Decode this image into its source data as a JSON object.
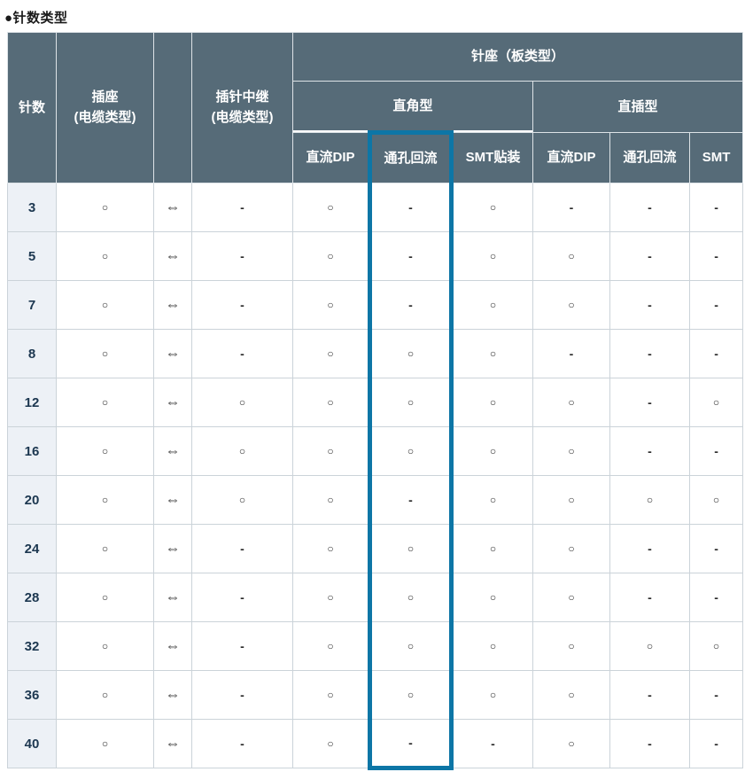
{
  "title": "●针数类型",
  "colors": {
    "header_bg": "#566b78",
    "header_text": "#ffffff",
    "row_label_bg": "#edf1f6",
    "row_label_text": "#1c3750",
    "grid_line": "#cbd3d9",
    "highlight_border": "#0d76a6"
  },
  "table": {
    "corner_header": "针数",
    "socket_header_line1": "插座",
    "socket_header_line2": "(电缆类型)",
    "arrow_col_header": "",
    "relay_header_line1": "插针中继",
    "relay_header_line2": "(电缆类型)",
    "board_type_group": "针座（板类型）",
    "right_angle_group": "直角型",
    "straight_group": "直插型",
    "sub_headers": [
      "直流DIP",
      "通孔回流",
      "SMT贴装",
      "直流DIP",
      "通孔回流",
      "SMT"
    ],
    "highlight": {
      "column_label": "通孔回流",
      "group": "直角型",
      "cell_index": 4
    },
    "symbols": {
      "available": "○",
      "not_available": "-",
      "interchangeable": "⇔"
    },
    "rows": [
      {
        "pins": "3",
        "cells": [
          "○",
          "⇔",
          "-",
          "○",
          "-",
          "○",
          "-",
          "-",
          "-"
        ]
      },
      {
        "pins": "5",
        "cells": [
          "○",
          "⇔",
          "-",
          "○",
          "-",
          "○",
          "○",
          "-",
          "-"
        ]
      },
      {
        "pins": "7",
        "cells": [
          "○",
          "⇔",
          "-",
          "○",
          "-",
          "○",
          "○",
          "-",
          "-"
        ]
      },
      {
        "pins": "8",
        "cells": [
          "○",
          "⇔",
          "-",
          "○",
          "○",
          "○",
          "-",
          "-",
          "-"
        ]
      },
      {
        "pins": "12",
        "cells": [
          "○",
          "⇔",
          "○",
          "○",
          "○",
          "○",
          "○",
          "-",
          "○"
        ]
      },
      {
        "pins": "16",
        "cells": [
          "○",
          "⇔",
          "○",
          "○",
          "○",
          "○",
          "○",
          "-",
          "-"
        ]
      },
      {
        "pins": "20",
        "cells": [
          "○",
          "⇔",
          "○",
          "○",
          "-",
          "○",
          "○",
          "○",
          "○"
        ]
      },
      {
        "pins": "24",
        "cells": [
          "○",
          "⇔",
          "-",
          "○",
          "○",
          "○",
          "○",
          "-",
          "-"
        ]
      },
      {
        "pins": "28",
        "cells": [
          "○",
          "⇔",
          "-",
          "○",
          "○",
          "○",
          "○",
          "-",
          "-"
        ]
      },
      {
        "pins": "32",
        "cells": [
          "○",
          "⇔",
          "-",
          "○",
          "○",
          "○",
          "○",
          "○",
          "○"
        ]
      },
      {
        "pins": "36",
        "cells": [
          "○",
          "⇔",
          "-",
          "○",
          "○",
          "○",
          "○",
          "-",
          "-"
        ]
      },
      {
        "pins": "40",
        "cells": [
          "○",
          "⇔",
          "-",
          "○",
          "-",
          "-",
          "○",
          "-",
          "-"
        ]
      }
    ]
  }
}
